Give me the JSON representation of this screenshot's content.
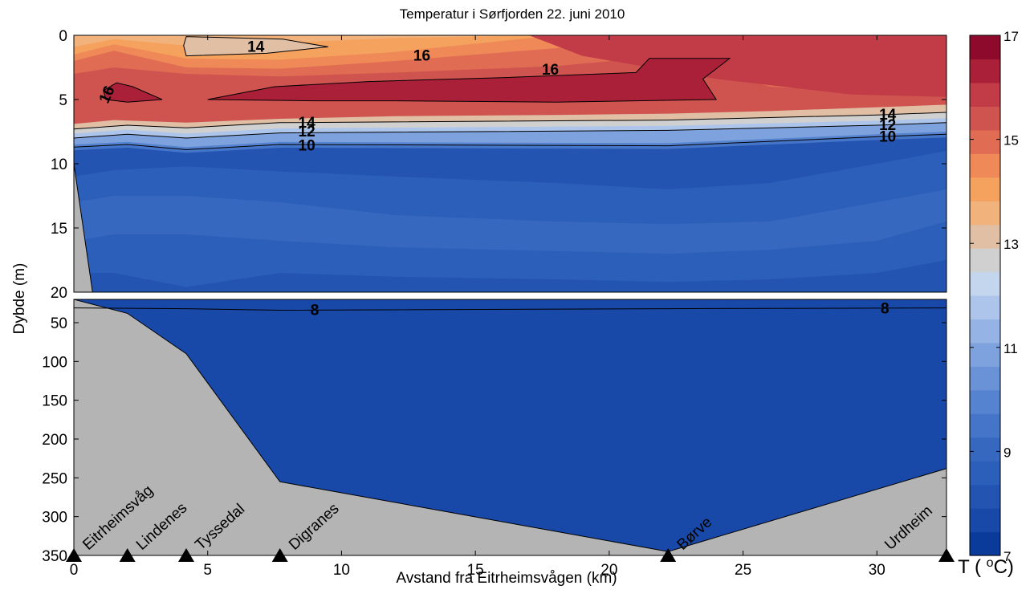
{
  "chart_data": {
    "type": "heatmap",
    "title": "Temperatur i Sørfjorden 22. juni 2010",
    "xlabel": "Avstand fra Eitrheimsvågen (km)",
    "ylabel": "Dybde (m)",
    "xlim": [
      0,
      32.6
    ],
    "x_ticks": [
      "0",
      "5",
      "10",
      "15",
      "20",
      "25",
      "30"
    ],
    "upper_panel": {
      "ylim": [
        0,
        20
      ],
      "y_ticks": [
        "0",
        "5",
        "10",
        "15",
        "20"
      ]
    },
    "lower_panel": {
      "ylim": [
        20,
        350
      ],
      "y_ticks": [
        "50",
        "100",
        "150",
        "200",
        "250",
        "300",
        "350"
      ]
    },
    "colorbar": {
      "label": "T ( ºC)",
      "range": [
        7,
        17
      ],
      "ticks": [
        "7",
        "9",
        "11",
        "13",
        "15",
        "17"
      ],
      "colors": [
        "#0a3a9a",
        "#1848a8",
        "#2354b2",
        "#2c5fba",
        "#3768c0",
        "#4575c8",
        "#5683cf",
        "#6a92d6",
        "#7ea2dd",
        "#95b3e4",
        "#adc5ea",
        "#c4d5ee",
        "#d0d0d0",
        "#e0bfa4",
        "#f2b27c",
        "#f5a25e",
        "#ef8a58",
        "#e06d53",
        "#cf5450",
        "#c23c47",
        "#aa2038",
        "#8e0a2c"
      ]
    },
    "stations": [
      {
        "name": "Eitrheimsvåg",
        "x": 0
      },
      {
        "name": "Lindenes",
        "x": 2.0
      },
      {
        "name": "Tyssedal",
        "x": 4.2
      },
      {
        "name": "Digranes",
        "x": 7.7
      },
      {
        "name": "Børve",
        "x": 22.2
      },
      {
        "name": "Urdheim",
        "x": 32.6
      }
    ],
    "isotherm_labels": [
      "14",
      "16",
      "16",
      "16",
      "14",
      "12",
      "10",
      "14",
      "12",
      "10",
      "8",
      "8"
    ],
    "seabed_depth": [
      {
        "x": 0,
        "depth": 20
      },
      {
        "x": 2.0,
        "depth": 38
      },
      {
        "x": 4.2,
        "depth": 90
      },
      {
        "x": 7.7,
        "depth": 255
      },
      {
        "x": 22.2,
        "depth": 345
      },
      {
        "x": 32.6,
        "depth": 238
      }
    ],
    "nearshore_depth_upper": [
      {
        "x": 0,
        "depth": 10
      },
      {
        "x": 0.7,
        "depth": 20
      }
    ],
    "thermocline": {
      "x": [
        0,
        2.0,
        4.2,
        7.7,
        22.2,
        30,
        32.6
      ],
      "t14": [
        7.3,
        7.0,
        7.2,
        6.8,
        6.6,
        6.2,
        6.0
      ],
      "t12": [
        8.0,
        7.7,
        8.0,
        7.6,
        7.4,
        7.0,
        6.8
      ],
      "t10": [
        8.7,
        8.5,
        8.9,
        8.5,
        8.6,
        7.9,
        7.7
      ]
    },
    "deep_isotherm_8": {
      "x": [
        0,
        4.2,
        7.7,
        22.2,
        32.6
      ],
      "depth": [
        31,
        32,
        34,
        32,
        31
      ]
    }
  }
}
